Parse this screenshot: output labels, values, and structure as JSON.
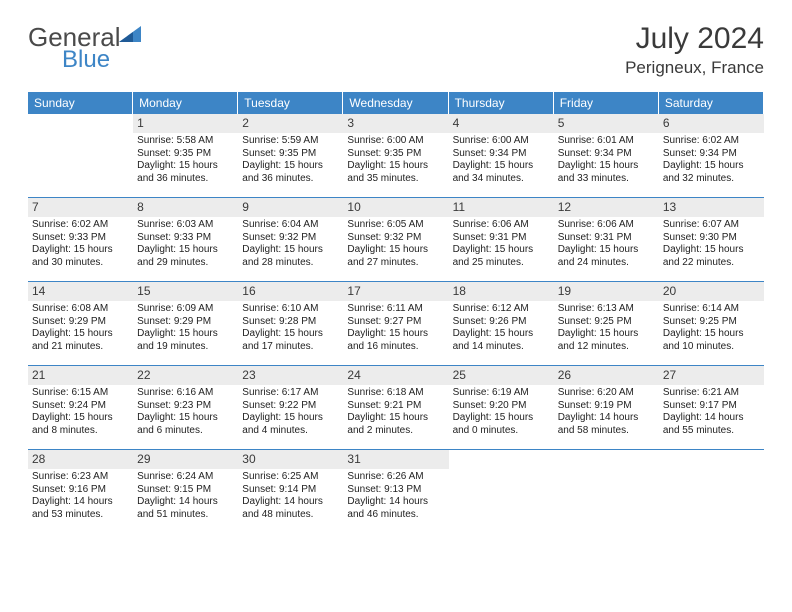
{
  "logo": {
    "general": "General",
    "blue": "Blue"
  },
  "title": "July 2024",
  "location": "Perigneux, France",
  "headers": [
    "Sunday",
    "Monday",
    "Tuesday",
    "Wednesday",
    "Thursday",
    "Friday",
    "Saturday"
  ],
  "style": {
    "accent": "#3d85c6",
    "daynum_bg": "#ececec",
    "text": "#222222",
    "header_text": "#ffffff",
    "title_fontsize": 30,
    "location_fontsize": 17,
    "header_fontsize": 12,
    "daynum_fontsize": 12,
    "body_fontsize": 10,
    "columns": 7,
    "cell_min_height": 84
  },
  "weeks": [
    [
      {
        "empty": true
      },
      {
        "day": "1",
        "sunrise": "Sunrise: 5:58 AM",
        "sunset": "Sunset: 9:35 PM",
        "daylight1": "Daylight: 15 hours",
        "daylight2": "and 36 minutes."
      },
      {
        "day": "2",
        "sunrise": "Sunrise: 5:59 AM",
        "sunset": "Sunset: 9:35 PM",
        "daylight1": "Daylight: 15 hours",
        "daylight2": "and 36 minutes."
      },
      {
        "day": "3",
        "sunrise": "Sunrise: 6:00 AM",
        "sunset": "Sunset: 9:35 PM",
        "daylight1": "Daylight: 15 hours",
        "daylight2": "and 35 minutes."
      },
      {
        "day": "4",
        "sunrise": "Sunrise: 6:00 AM",
        "sunset": "Sunset: 9:34 PM",
        "daylight1": "Daylight: 15 hours",
        "daylight2": "and 34 minutes."
      },
      {
        "day": "5",
        "sunrise": "Sunrise: 6:01 AM",
        "sunset": "Sunset: 9:34 PM",
        "daylight1": "Daylight: 15 hours",
        "daylight2": "and 33 minutes."
      },
      {
        "day": "6",
        "sunrise": "Sunrise: 6:02 AM",
        "sunset": "Sunset: 9:34 PM",
        "daylight1": "Daylight: 15 hours",
        "daylight2": "and 32 minutes."
      }
    ],
    [
      {
        "day": "7",
        "sunrise": "Sunrise: 6:02 AM",
        "sunset": "Sunset: 9:33 PM",
        "daylight1": "Daylight: 15 hours",
        "daylight2": "and 30 minutes."
      },
      {
        "day": "8",
        "sunrise": "Sunrise: 6:03 AM",
        "sunset": "Sunset: 9:33 PM",
        "daylight1": "Daylight: 15 hours",
        "daylight2": "and 29 minutes."
      },
      {
        "day": "9",
        "sunrise": "Sunrise: 6:04 AM",
        "sunset": "Sunset: 9:32 PM",
        "daylight1": "Daylight: 15 hours",
        "daylight2": "and 28 minutes."
      },
      {
        "day": "10",
        "sunrise": "Sunrise: 6:05 AM",
        "sunset": "Sunset: 9:32 PM",
        "daylight1": "Daylight: 15 hours",
        "daylight2": "and 27 minutes."
      },
      {
        "day": "11",
        "sunrise": "Sunrise: 6:06 AM",
        "sunset": "Sunset: 9:31 PM",
        "daylight1": "Daylight: 15 hours",
        "daylight2": "and 25 minutes."
      },
      {
        "day": "12",
        "sunrise": "Sunrise: 6:06 AM",
        "sunset": "Sunset: 9:31 PM",
        "daylight1": "Daylight: 15 hours",
        "daylight2": "and 24 minutes."
      },
      {
        "day": "13",
        "sunrise": "Sunrise: 6:07 AM",
        "sunset": "Sunset: 9:30 PM",
        "daylight1": "Daylight: 15 hours",
        "daylight2": "and 22 minutes."
      }
    ],
    [
      {
        "day": "14",
        "sunrise": "Sunrise: 6:08 AM",
        "sunset": "Sunset: 9:29 PM",
        "daylight1": "Daylight: 15 hours",
        "daylight2": "and 21 minutes."
      },
      {
        "day": "15",
        "sunrise": "Sunrise: 6:09 AM",
        "sunset": "Sunset: 9:29 PM",
        "daylight1": "Daylight: 15 hours",
        "daylight2": "and 19 minutes."
      },
      {
        "day": "16",
        "sunrise": "Sunrise: 6:10 AM",
        "sunset": "Sunset: 9:28 PM",
        "daylight1": "Daylight: 15 hours",
        "daylight2": "and 17 minutes."
      },
      {
        "day": "17",
        "sunrise": "Sunrise: 6:11 AM",
        "sunset": "Sunset: 9:27 PM",
        "daylight1": "Daylight: 15 hours",
        "daylight2": "and 16 minutes."
      },
      {
        "day": "18",
        "sunrise": "Sunrise: 6:12 AM",
        "sunset": "Sunset: 9:26 PM",
        "daylight1": "Daylight: 15 hours",
        "daylight2": "and 14 minutes."
      },
      {
        "day": "19",
        "sunrise": "Sunrise: 6:13 AM",
        "sunset": "Sunset: 9:25 PM",
        "daylight1": "Daylight: 15 hours",
        "daylight2": "and 12 minutes."
      },
      {
        "day": "20",
        "sunrise": "Sunrise: 6:14 AM",
        "sunset": "Sunset: 9:25 PM",
        "daylight1": "Daylight: 15 hours",
        "daylight2": "and 10 minutes."
      }
    ],
    [
      {
        "day": "21",
        "sunrise": "Sunrise: 6:15 AM",
        "sunset": "Sunset: 9:24 PM",
        "daylight1": "Daylight: 15 hours",
        "daylight2": "and 8 minutes."
      },
      {
        "day": "22",
        "sunrise": "Sunrise: 6:16 AM",
        "sunset": "Sunset: 9:23 PM",
        "daylight1": "Daylight: 15 hours",
        "daylight2": "and 6 minutes."
      },
      {
        "day": "23",
        "sunrise": "Sunrise: 6:17 AM",
        "sunset": "Sunset: 9:22 PM",
        "daylight1": "Daylight: 15 hours",
        "daylight2": "and 4 minutes."
      },
      {
        "day": "24",
        "sunrise": "Sunrise: 6:18 AM",
        "sunset": "Sunset: 9:21 PM",
        "daylight1": "Daylight: 15 hours",
        "daylight2": "and 2 minutes."
      },
      {
        "day": "25",
        "sunrise": "Sunrise: 6:19 AM",
        "sunset": "Sunset: 9:20 PM",
        "daylight1": "Daylight: 15 hours",
        "daylight2": "and 0 minutes."
      },
      {
        "day": "26",
        "sunrise": "Sunrise: 6:20 AM",
        "sunset": "Sunset: 9:19 PM",
        "daylight1": "Daylight: 14 hours",
        "daylight2": "and 58 minutes."
      },
      {
        "day": "27",
        "sunrise": "Sunrise: 6:21 AM",
        "sunset": "Sunset: 9:17 PM",
        "daylight1": "Daylight: 14 hours",
        "daylight2": "and 55 minutes."
      }
    ],
    [
      {
        "day": "28",
        "sunrise": "Sunrise: 6:23 AM",
        "sunset": "Sunset: 9:16 PM",
        "daylight1": "Daylight: 14 hours",
        "daylight2": "and 53 minutes."
      },
      {
        "day": "29",
        "sunrise": "Sunrise: 6:24 AM",
        "sunset": "Sunset: 9:15 PM",
        "daylight1": "Daylight: 14 hours",
        "daylight2": "and 51 minutes."
      },
      {
        "day": "30",
        "sunrise": "Sunrise: 6:25 AM",
        "sunset": "Sunset: 9:14 PM",
        "daylight1": "Daylight: 14 hours",
        "daylight2": "and 48 minutes."
      },
      {
        "day": "31",
        "sunrise": "Sunrise: 6:26 AM",
        "sunset": "Sunset: 9:13 PM",
        "daylight1": "Daylight: 14 hours",
        "daylight2": "and 46 minutes."
      },
      {
        "empty": true
      },
      {
        "empty": true
      },
      {
        "empty": true
      }
    ]
  ]
}
